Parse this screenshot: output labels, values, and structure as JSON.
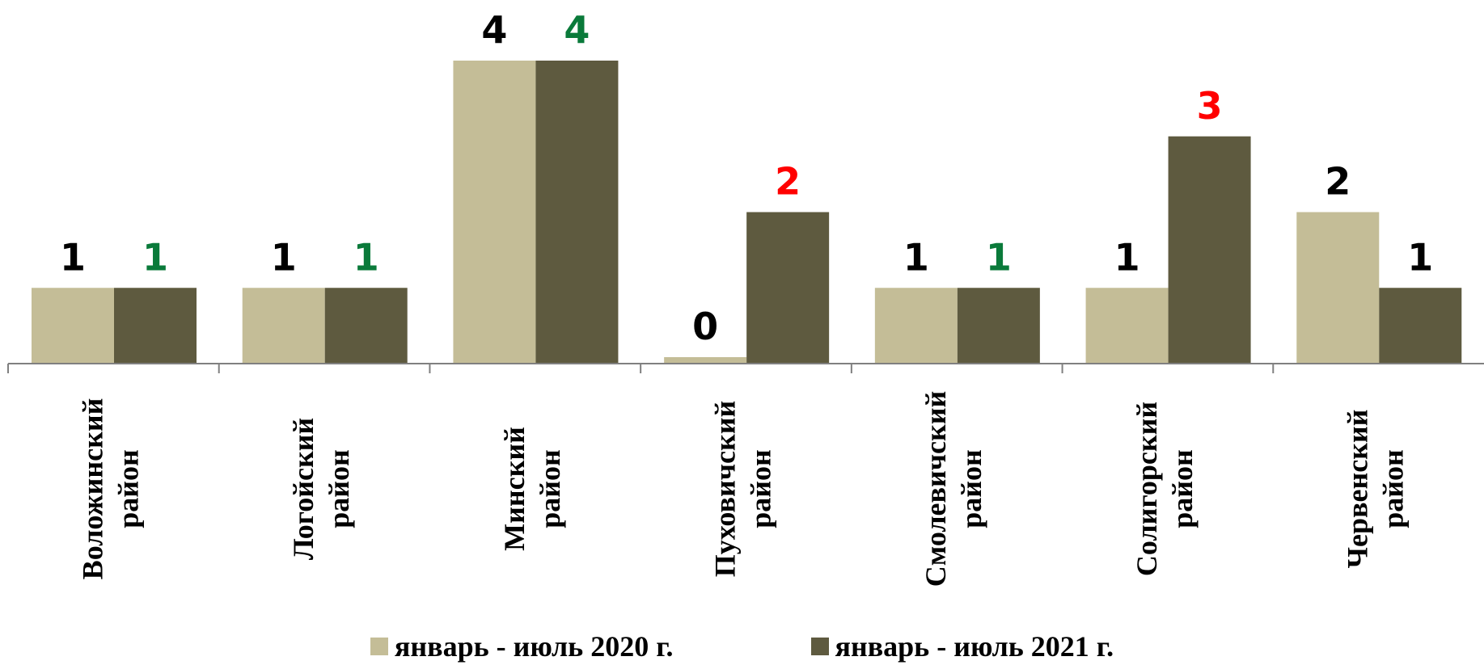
{
  "chart_data": {
    "type": "bar",
    "categories": [
      [
        "Воложинский",
        "район"
      ],
      [
        "Логойский",
        "район"
      ],
      [
        "Минский",
        "район"
      ],
      [
        "Пуховичский",
        "район"
      ],
      [
        "Смолевичский",
        "район"
      ],
      [
        "Солигорский",
        "район"
      ],
      [
        "Червенский",
        "район"
      ]
    ],
    "series": [
      {
        "name": "январь - июль 2020 г.",
        "color": "#C4BD97",
        "values": [
          1,
          1,
          4,
          0,
          1,
          1,
          2
        ],
        "label_colors": [
          "#000000",
          "#000000",
          "#000000",
          "#000000",
          "#000000",
          "#000000",
          "#000000"
        ]
      },
      {
        "name": "январь - июль 2021 г.",
        "color": "#5E5A3F",
        "values": [
          1,
          1,
          4,
          2,
          1,
          3,
          1
        ],
        "label_colors": [
          "#0A7A3A",
          "#0A7A3A",
          "#0A7A3A",
          "#FF0000",
          "#0A7A3A",
          "#FF0000",
          "#000000"
        ]
      }
    ],
    "ylim": [
      0,
      4
    ],
    "grid": false,
    "legend_position": "bottom"
  }
}
